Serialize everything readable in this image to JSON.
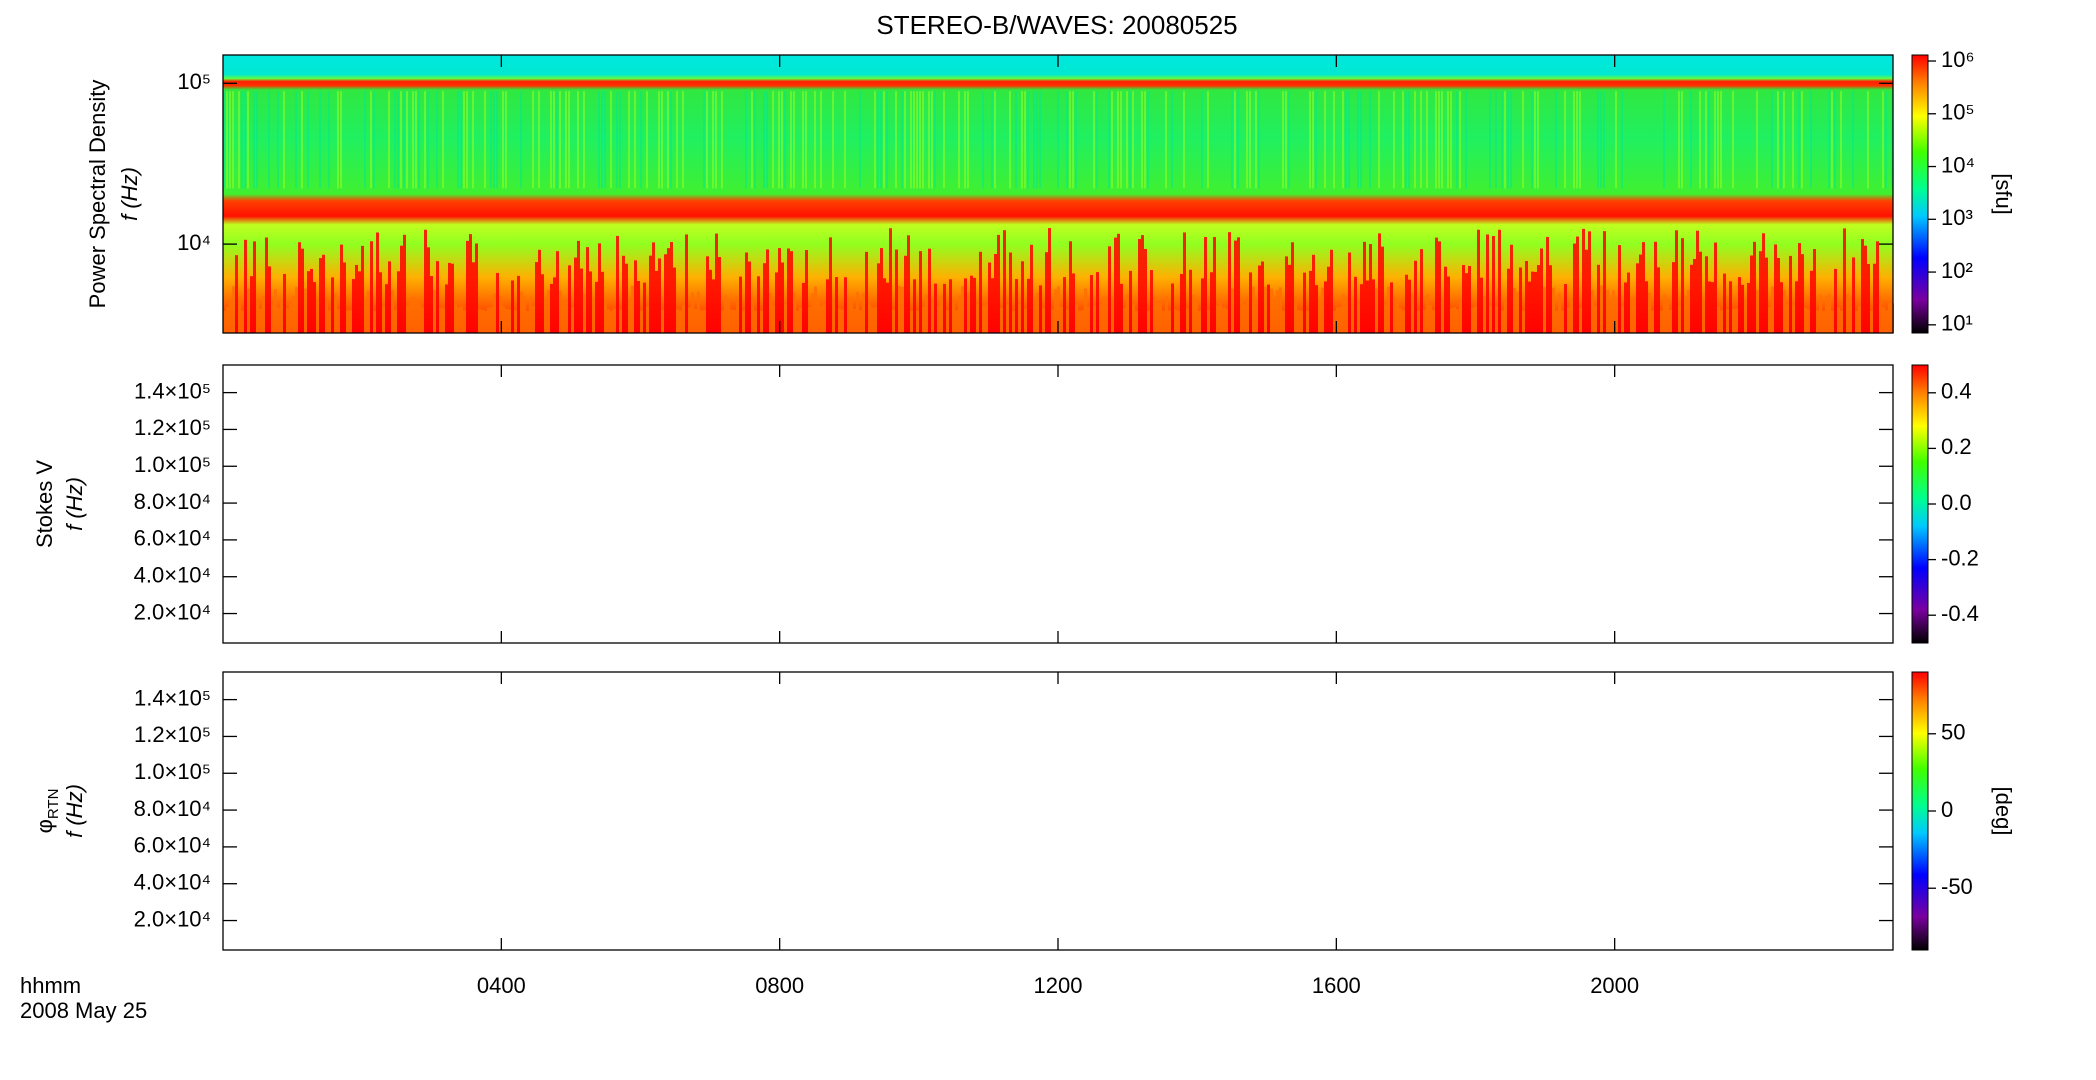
{
  "chart_data": {
    "type": "spectrogram",
    "title": "STEREO-B/WAVES: 20080525",
    "xlim": [
      0,
      24
    ],
    "xticks": [
      {
        "value": 4,
        "label": "0400"
      },
      {
        "value": 8,
        "label": "0800"
      },
      {
        "value": 12,
        "label": "1200"
      },
      {
        "value": 16,
        "label": "1600"
      },
      {
        "value": 20,
        "label": "2000"
      }
    ],
    "xlabel": "hhmm",
    "date": "2008 May 25",
    "panels": [
      {
        "ylabel": "Power Spectral Density",
        "ylabel2": "f (Hz)",
        "yscale": "log",
        "ylim": [
          2800,
          150000
        ],
        "yticks": [
          {
            "value": 10000,
            "label": "10⁴"
          },
          {
            "value": 100000,
            "label": "10⁵"
          }
        ],
        "colorbar": {
          "scale": "log",
          "clim": [
            7,
            1300000
          ],
          "label": "[sfu]",
          "ticks": [
            {
              "value": 10,
              "label": "10¹"
            },
            {
              "value": 100,
              "label": "10²"
            },
            {
              "value": 1000,
              "label": "10³"
            },
            {
              "value": 10000,
              "label": "10⁴"
            },
            {
              "value": 100000,
              "label": "10⁵"
            },
            {
              "value": 1000000,
              "label": "10⁶"
            }
          ]
        }
      },
      {
        "ylabel": "Stokes V",
        "ylabel2": "f (Hz)",
        "yscale": "linear",
        "ylim": [
          4000,
          155000
        ],
        "yticks": [
          {
            "value": 20000,
            "label": "2.0×10⁴"
          },
          {
            "value": 40000,
            "label": "4.0×10⁴"
          },
          {
            "value": 60000,
            "label": "6.0×10⁴"
          },
          {
            "value": 80000,
            "label": "8.0×10⁴"
          },
          {
            "value": 100000,
            "label": "1.0×10⁵"
          },
          {
            "value": 120000,
            "label": "1.2×10⁵"
          },
          {
            "value": 140000,
            "label": "1.4×10⁵"
          }
        ],
        "colorbar": {
          "scale": "linear",
          "clim": [
            -0.5,
            0.5
          ],
          "ticks": [
            -0.4,
            -0.2,
            {
              "value": 0,
              "label": "0.0"
            },
            0.2,
            0.4
          ]
        }
      },
      {
        "ylabel": "φ",
        "ylabel_subscript": "RTN",
        "ylabel2": "f (Hz)",
        "yscale": "linear",
        "ylim": [
          4000,
          155000
        ],
        "yticks": [
          {
            "value": 20000,
            "label": "2.0×10⁴"
          },
          {
            "value": 40000,
            "label": "4.0×10⁴"
          },
          {
            "value": 60000,
            "label": "6.0×10⁴"
          },
          {
            "value": 80000,
            "label": "8.0×10⁴"
          },
          {
            "value": 100000,
            "label": "1.0×10⁵"
          },
          {
            "value": 120000,
            "label": "1.2×10⁵"
          },
          {
            "value": 140000,
            "label": "1.4×10⁵"
          }
        ],
        "colorbar": {
          "scale": "linear",
          "clim": [
            -90,
            90
          ],
          "label": "[deg]",
          "ticks": [
            -50,
            0,
            50
          ]
        }
      }
    ]
  }
}
